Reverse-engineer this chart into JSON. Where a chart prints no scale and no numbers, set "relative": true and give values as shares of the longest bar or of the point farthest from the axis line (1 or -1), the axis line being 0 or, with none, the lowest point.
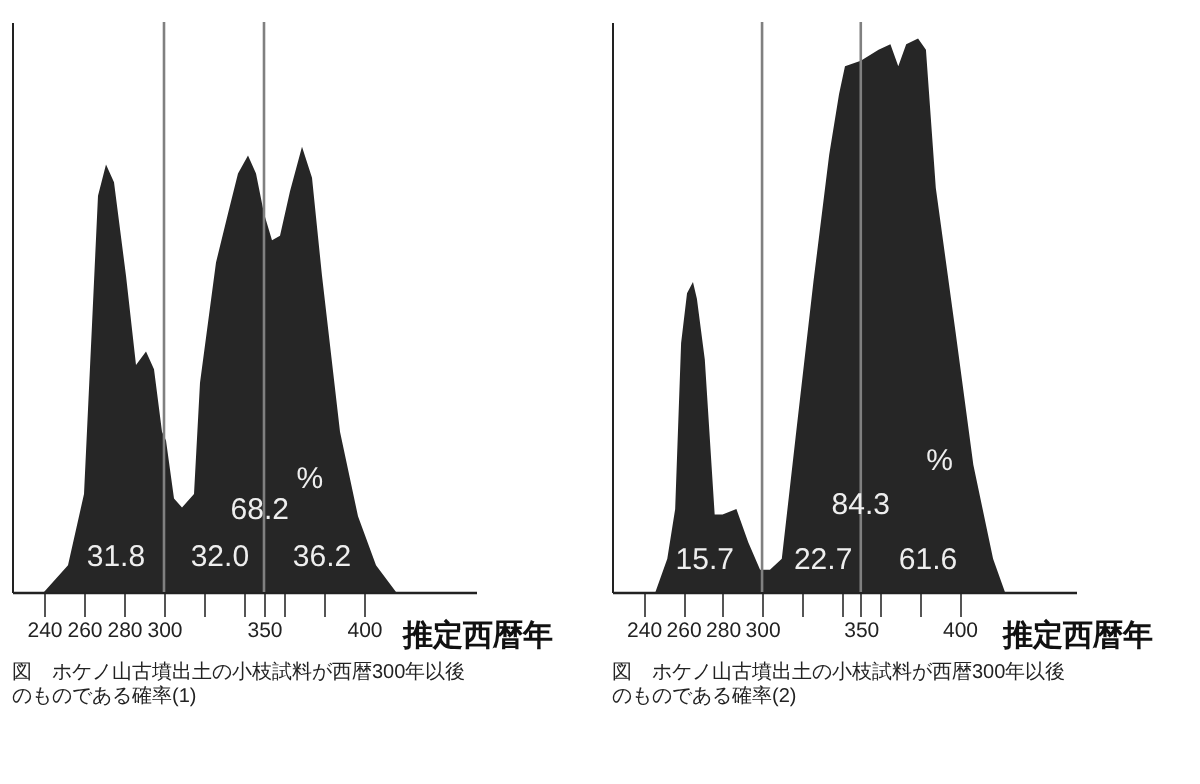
{
  "chart_data": [
    {
      "type": "area",
      "relative": true,
      "title": "図　ホケノ山古墳出土の小枝試料が西暦300年以後のものである確率(1)",
      "xlabel": "推定西暦年",
      "tick_labels": "x",
      "x": [
        240,
        252,
        260,
        264,
        267,
        271,
        275,
        281,
        286,
        291,
        295,
        299,
        301,
        305,
        309,
        315,
        318,
        326,
        332,
        337,
        342,
        346,
        350,
        354,
        358,
        363,
        369,
        374,
        379,
        388,
        397,
        406,
        416
      ],
      "series": [
        {
          "color": "#262626",
          "values": [
            0,
            0.06,
            0.22,
            0.6,
            0.89,
            0.96,
            0.92,
            0.71,
            0.51,
            0.54,
            0.5,
            0.36,
            0.34,
            0.21,
            0.19,
            0.22,
            0.47,
            0.74,
            0.85,
            0.94,
            0.98,
            0.94,
            0.85,
            0.79,
            0.8,
            0.9,
            1,
            0.93,
            0.71,
            0.36,
            0.17,
            0.06,
            0
          ]
        }
      ],
      "xlim": [
        224,
        456
      ],
      "xticks": [
        240,
        260,
        280,
        300,
        {
          "value": 320,
          "label": null
        },
        {
          "value": 340,
          "label": null
        },
        350,
        {
          "value": 360,
          "label": null
        },
        {
          "value": 380,
          "label": null
        },
        400
      ],
      "ref_lines": [
        {
          "axis": "x",
          "value": 300,
          "color": "#808080"
        },
        {
          "axis": "x",
          "value": 350,
          "color": "#808080"
        }
      ],
      "annotations": [
        "31.8",
        "32.0",
        "36.2",
        "68.2",
        "%"
      ]
    },
    {
      "type": "area",
      "relative": true,
      "title": "図　ホケノ山古墳出土の小枝試料が西暦300年以後のものである確率(2)",
      "xlabel": "推定西暦年",
      "tick_labels": "x",
      "x": [
        246,
        252,
        256,
        259,
        262,
        265,
        267,
        271,
        276,
        280,
        287,
        293,
        299,
        304,
        310,
        317,
        326,
        334,
        339,
        342,
        350,
        359,
        365,
        369,
        373,
        379,
        383,
        388,
        398,
        407,
        417,
        423
      ],
      "series": [
        {
          "color": "#262626",
          "values": [
            0,
            0.06,
            0.15,
            0.45,
            0.54,
            0.56,
            0.53,
            0.42,
            0.14,
            0.14,
            0.15,
            0.09,
            0.04,
            0.04,
            0.06,
            0.28,
            0.56,
            0.79,
            0.9,
            0.95,
            0.96,
            0.98,
            0.99,
            0.95,
            0.99,
            1,
            0.98,
            0.73,
            0.47,
            0.23,
            0.06,
            0
          ]
        }
      ],
      "xlim": [
        224,
        459
      ],
      "xticks": [
        240,
        260,
        280,
        300,
        {
          "value": 320,
          "label": null
        },
        {
          "value": 340,
          "label": null
        },
        350,
        {
          "value": 360,
          "label": null
        },
        {
          "value": 380,
          "label": null
        },
        400
      ],
      "ref_lines": [
        {
          "axis": "x",
          "value": 300,
          "color": "#808080"
        },
        {
          "axis": "x",
          "value": 350,
          "color": "#808080"
        }
      ],
      "annotations": [
        "15.7",
        "22.7",
        "61.6",
        "84.3",
        "%"
      ]
    }
  ]
}
